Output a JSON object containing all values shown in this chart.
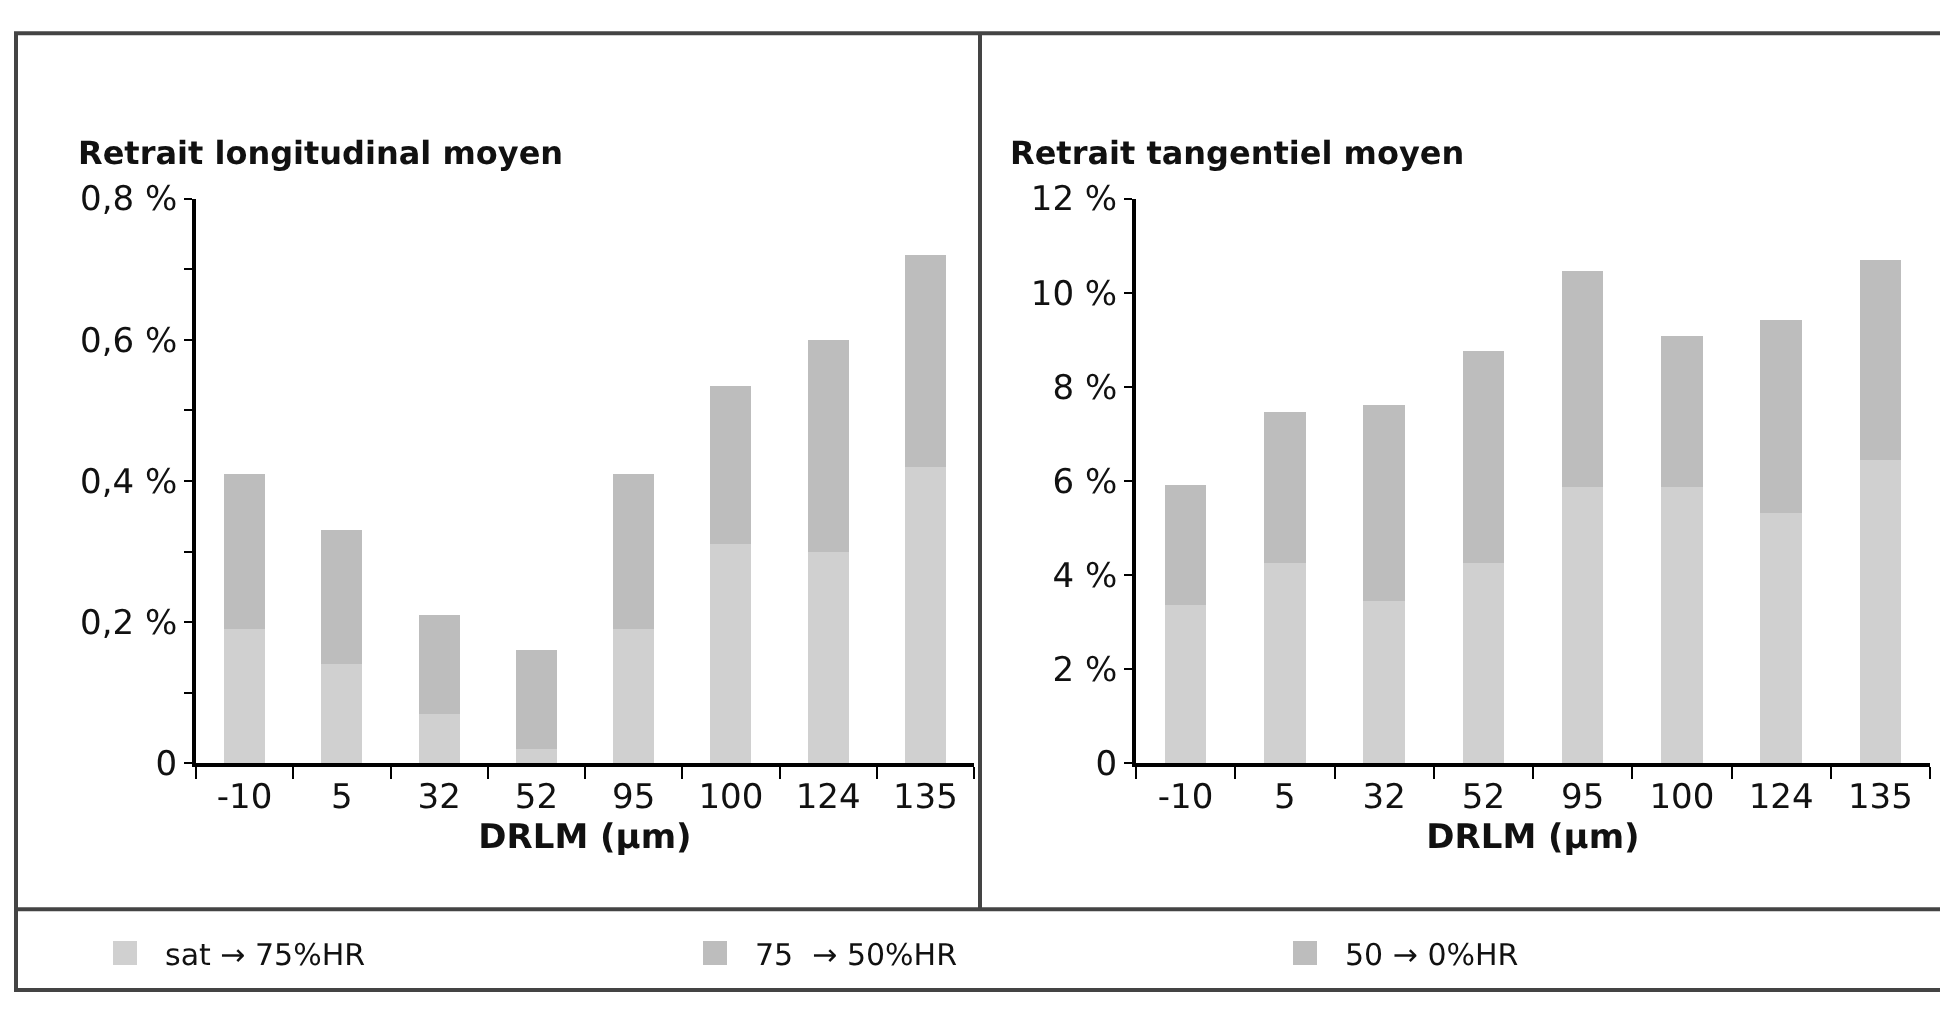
{
  "chart_data": [
    {
      "type": "bar",
      "title": "Retrait longitudinal moyen",
      "xlabel": "DRLM (µm)",
      "categories": [
        "-10",
        "5",
        "32",
        "52",
        "95",
        "100",
        "124",
        "135"
      ],
      "stacked": true,
      "legend": "bottom",
      "series": [
        {
          "name": "sat → 75%HR",
          "color": "#d0d0d0",
          "values": [
            0.19,
            0.14,
            0.07,
            0.02,
            0.19,
            0.31,
            0.3,
            0.42
          ]
        },
        {
          "name": "75  → 50%HR",
          "color": "#bdbdbd",
          "values": [
            0.22,
            0.19,
            0.14,
            0.14,
            0.22,
            0.225,
            0.3,
            0.3
          ]
        },
        {
          "name": "50 → 0%HR",
          "color": "#bdbdbd",
          "values": [
            null,
            null,
            null,
            null,
            null,
            null,
            null,
            null
          ]
        }
      ],
      "ylim": [
        0,
        0.8
      ],
      "yticks": [
        {
          "value": 0,
          "label": "0"
        },
        {
          "value": 0.1,
          "label": null
        },
        {
          "value": 0.2,
          "label": "0,2 %"
        },
        {
          "value": 0.3,
          "label": null
        },
        {
          "value": 0.4,
          "label": "0,4 %"
        },
        {
          "value": 0.5,
          "label": null
        },
        {
          "value": 0.6,
          "label": "0,6 %"
        },
        {
          "value": 0.7,
          "label": null
        },
        {
          "value": 0.8,
          "label": "0,8 %"
        }
      ]
    },
    {
      "type": "bar",
      "title": "Retrait tangentiel moyen",
      "xlabel": "DRLM (µm)",
      "categories": [
        "-10",
        "5",
        "32",
        "52",
        "95",
        "100",
        "124",
        "135"
      ],
      "stacked": true,
      "series": [
        {
          "color": "#d0d0d0",
          "values": [
            3.36,
            4.26,
            3.45,
            4.26,
            5.88,
            5.88,
            5.31,
            6.45
          ]
        },
        {
          "color": "#bdbdbd",
          "values": [
            2.56,
            3.2,
            4.17,
            4.5,
            4.58,
            3.2,
            4.1,
            4.25
          ]
        },
        {
          "color": "#bdbdbd",
          "values": [
            null,
            null,
            null,
            null,
            null,
            null,
            null,
            null
          ]
        }
      ],
      "ylim": [
        0,
        12
      ],
      "yticks": [
        {
          "value": 0,
          "label": "0"
        },
        {
          "value": 2,
          "label": "2 %"
        },
        {
          "value": 4,
          "label": "4 %"
        },
        {
          "value": 6,
          "label": "6 %"
        },
        {
          "value": 8,
          "label": "8 %"
        },
        {
          "value": 10,
          "label": "10 %"
        },
        {
          "value": 12,
          "label": "12 %"
        }
      ]
    }
  ]
}
